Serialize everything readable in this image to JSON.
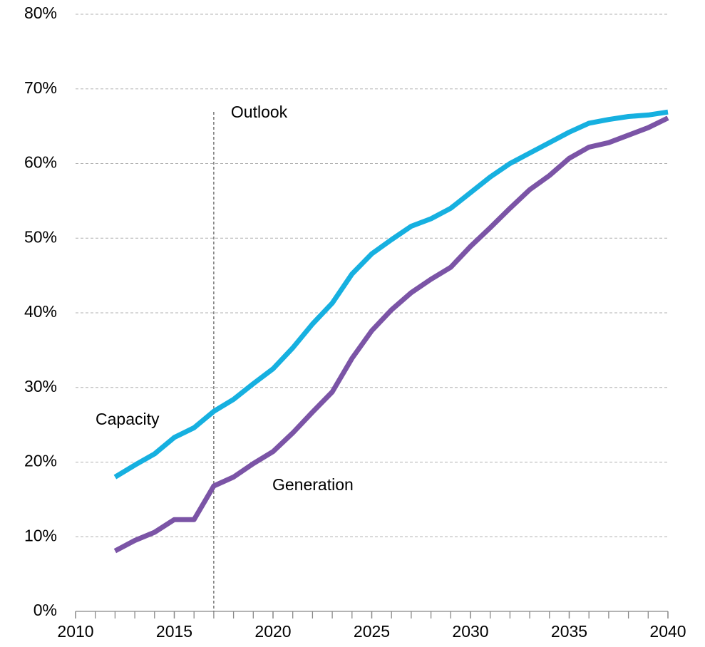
{
  "chart_data": {
    "type": "line",
    "x": [
      2012,
      2013,
      2014,
      2015,
      2016,
      2017,
      2018,
      2019,
      2020,
      2021,
      2022,
      2023,
      2024,
      2025,
      2026,
      2027,
      2028,
      2029,
      2030,
      2031,
      2032,
      2033,
      2034,
      2035,
      2036,
      2037,
      2038,
      2039,
      2040
    ],
    "series": [
      {
        "name": "Capacity",
        "color": "#16b0e0",
        "values": [
          18,
          19.6,
          21.1,
          23.3,
          24.6,
          26.8,
          28.4,
          30.5,
          32.5,
          35.3,
          38.5,
          41.3,
          45.2,
          47.9,
          49.8,
          51.6,
          52.6,
          54.0,
          56.1,
          58.2,
          60.0,
          61.4,
          62.8,
          64.2,
          65.4,
          65.9,
          66.3,
          66.5,
          66.9
        ]
      },
      {
        "name": "Generation",
        "color": "#7b54a6",
        "values": [
          8.1,
          9.5,
          10.6,
          12.3,
          12.3,
          16.8,
          18.0,
          19.8,
          21.4,
          23.9,
          26.7,
          29.4,
          33.9,
          37.6,
          40.4,
          42.7,
          44.5,
          46.1,
          48.9,
          51.4,
          54.0,
          56.5,
          58.4,
          60.7,
          62.2,
          62.8,
          63.8,
          64.8,
          66.1
        ]
      }
    ],
    "annotations": [
      {
        "text": "Outlook",
        "x": 2017
      }
    ],
    "xlim": [
      2010,
      2040
    ],
    "xticks": [
      2010,
      2015,
      2020,
      2025,
      2030,
      2035,
      2040
    ],
    "ylim": [
      0,
      80
    ],
    "yticks": [
      {
        "value": 0,
        "label": "0%"
      },
      {
        "value": 10,
        "label": "10%"
      },
      {
        "value": 20,
        "label": "20%"
      },
      {
        "value": 30,
        "label": "30%"
      },
      {
        "value": 40,
        "label": "40%"
      },
      {
        "value": 50,
        "label": "50%"
      },
      {
        "value": 60,
        "label": "60%"
      },
      {
        "value": 70,
        "label": "70%"
      },
      {
        "value": 80,
        "label": "80%"
      }
    ],
    "grid": true
  }
}
